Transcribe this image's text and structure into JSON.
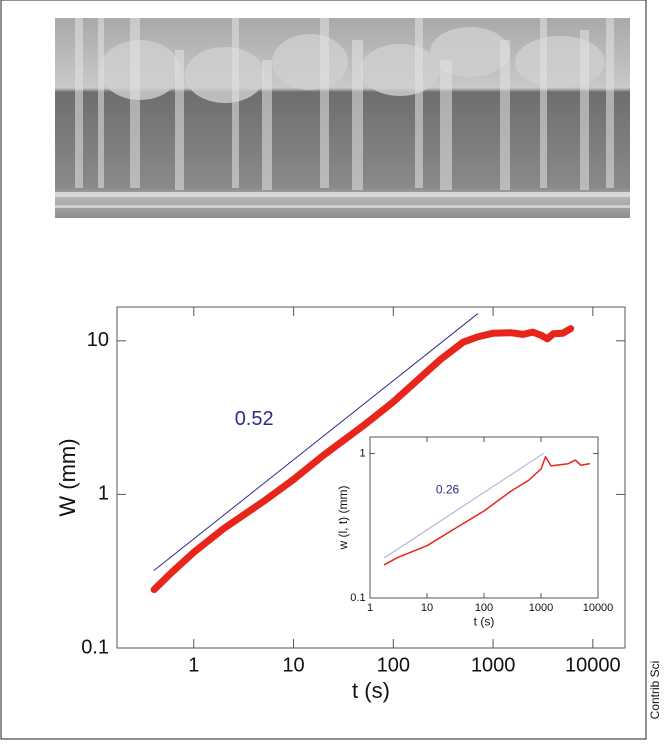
{
  "credit": "Contrib Sci",
  "chart_data": [
    {
      "type": "line",
      "xlabel": "t (s)",
      "ylabel": "W (mm)",
      "log_x": true,
      "log_y": true,
      "annotation": "0.52",
      "xlim": [
        0.17,
        21000
      ],
      "ylim": [
        0.1,
        16.6
      ],
      "xticks": [
        1,
        10,
        100,
        1000,
        10000
      ],
      "yticks": [
        0.1,
        1,
        10
      ],
      "series": [
        {
          "color": "#e8251b",
          "style": "points",
          "x": [
            0.4,
            0.6,
            1,
            2,
            5,
            10,
            20,
            50,
            100,
            200,
            300,
            500,
            700,
            1000,
            1500,
            2000,
            2500,
            3000,
            3500,
            4000,
            5000,
            6000
          ],
          "values": [
            0.24,
            0.31,
            0.42,
            0.6,
            0.9,
            1.25,
            1.8,
            2.8,
            4,
            6,
            7.6,
            9.8,
            10.6,
            11.2,
            11.3,
            11,
            11.4,
            10.9,
            10.3,
            11.1,
            11.2,
            12
          ]
        },
        {
          "color": "#2b2b8f",
          "style": "line",
          "x": [
            0.4,
            700
          ],
          "values": [
            0.32,
            15
          ]
        }
      ]
    },
    {
      "type": "line",
      "xlabel": "t (s)",
      "ylabel": "w (l, t)  (mm)",
      "log_x": true,
      "log_y": true,
      "annotation": "0.26",
      "xlim": [
        1,
        10000
      ],
      "ylim": [
        0.1,
        1.3
      ],
      "xticks": [
        1,
        10,
        100,
        1000,
        10000
      ],
      "yticks": [
        0.1,
        1
      ],
      "series": [
        {
          "color": "#e8251b",
          "style": "thin",
          "x": [
            1.8,
            3,
            10,
            30,
            100,
            300,
            600,
            1000,
            1200,
            1500,
            3000,
            4000,
            5000,
            7000
          ],
          "values": [
            0.17,
            0.19,
            0.23,
            0.3,
            0.4,
            0.55,
            0.65,
            0.78,
            0.95,
            0.82,
            0.85,
            0.9,
            0.83,
            0.85
          ]
        },
        {
          "color": "#a8a8d8",
          "style": "line",
          "x": [
            1.8,
            1100
          ],
          "values": [
            0.19,
            1.0
          ]
        }
      ]
    }
  ]
}
